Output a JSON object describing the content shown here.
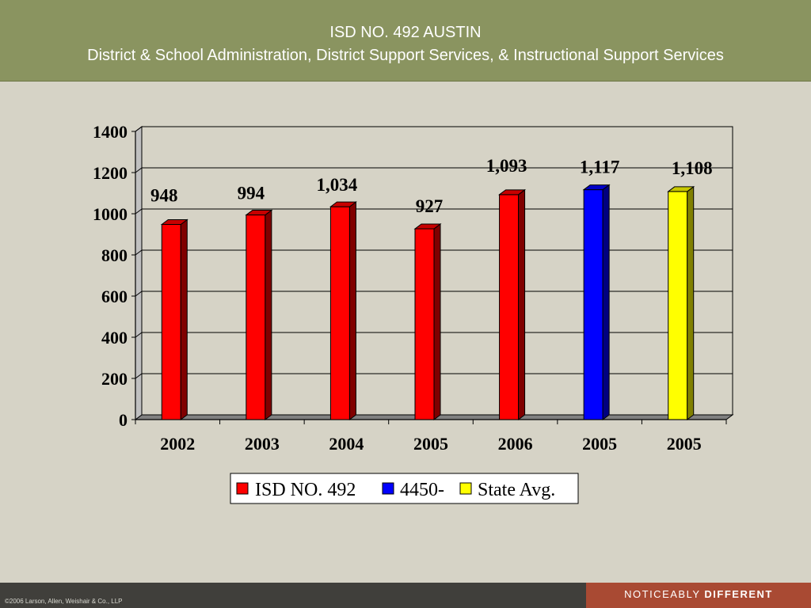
{
  "slide": {
    "title": "ISD NO. 492 AUSTIN",
    "subtitle": "District & School Administration, District Support Services, & Instructional Support Services"
  },
  "footer": {
    "copyright": "©2006 Larson, Allen, Weishair & Co., LLP",
    "tagline_light": "NOTICEABLY",
    "tagline_bold": "DIFFERENT"
  },
  "chart_data": {
    "type": "bar",
    "title": "",
    "xlabel": "",
    "ylabel": "",
    "categories": [
      "2002",
      "2003",
      "2004",
      "2005",
      "2006",
      "2005",
      "2005"
    ],
    "series": [
      {
        "name": "ISD NO. 492",
        "color": "#ff0000",
        "values": [
          948,
          994,
          1034,
          927,
          1093,
          null,
          null
        ]
      },
      {
        "name": "4450-",
        "color": "#0000ff",
        "values": [
          null,
          null,
          null,
          null,
          null,
          1117,
          null
        ]
      },
      {
        "name": "State Avg.",
        "color": "#ffff00",
        "values": [
          null,
          null,
          null,
          null,
          null,
          null,
          1108
        ]
      }
    ],
    "data_labels": [
      "948",
      "994",
      "1,034",
      "927",
      "1,093",
      "1,117",
      "1,108"
    ],
    "ylim": [
      0,
      1400
    ],
    "yticks": [
      0,
      200,
      400,
      600,
      800,
      1000,
      1200,
      1400
    ],
    "grid": true,
    "legend_position": "bottom"
  }
}
